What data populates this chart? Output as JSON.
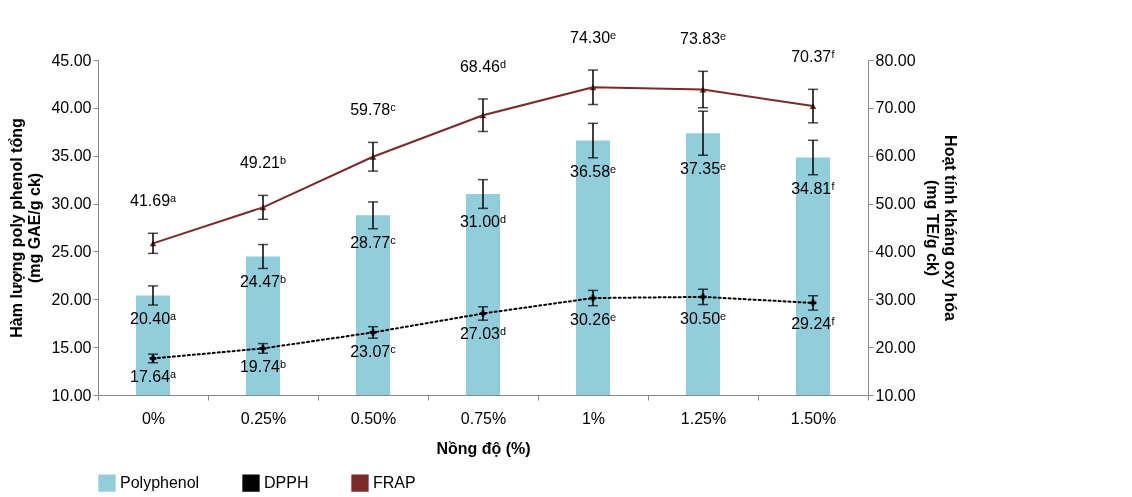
{
  "chart_data": {
    "type": "bar",
    "xlabel": "Nồng độ (%)",
    "ylabel": "Hàm lượng poly phenol tổng\n(mg GAE/g ck)",
    "y2label": "Hoạt tính kháng oxy hóa\n(mg TE/g ck)",
    "categories": [
      "0%",
      "0.25%",
      "0.50%",
      "0.75%",
      "1%",
      "1.25%",
      "1.50%"
    ],
    "series": [
      {
        "name": "Polyphenol",
        "color": "#92cddc",
        "values": [
          20.4,
          24.47,
          28.77,
          31.0,
          36.58,
          37.35,
          34.81
        ],
        "errors": [
          1.0,
          1.25,
          1.4,
          1.5,
          1.8,
          2.3,
          1.8
        ],
        "value_labels": [
          "20.40ᵃ",
          "24.47ᵇ",
          "28.77ᶜ",
          "31.00ᵈ",
          "36.58ᵉ",
          "37.35ᵉ",
          "34.81ᶠ"
        ]
      },
      {
        "name": "DPPH",
        "type": "line",
        "axis": "y2",
        "color": "#000000",
        "marker": "cross",
        "line_style": "dotted",
        "values": [
          17.64,
          19.74,
          23.07,
          27.03,
          30.26,
          30.5,
          29.24
        ],
        "errors": [
          0.9,
          1.0,
          1.2,
          1.4,
          1.6,
          1.6,
          1.5
        ],
        "value_labels": [
          "17.64ᵃ",
          "19.74ᵇ",
          "23.07ᶜ",
          "27.03ᵈ",
          "30.26ᵉ",
          "30.50ᵉ",
          "29.24ᶠ"
        ]
      },
      {
        "name": "FRAP",
        "type": "line",
        "axis": "y2",
        "color": "#7b2a2a",
        "marker": "triangle",
        "line_style": "solid",
        "values": [
          41.69,
          49.21,
          59.78,
          68.46,
          74.3,
          73.83,
          70.37
        ],
        "errors": [
          2.1,
          2.5,
          3.0,
          3.4,
          3.6,
          3.8,
          3.5
        ],
        "value_labels": [
          "41.69ᵃ",
          "49.21ᵇ",
          "59.78ᶜ",
          "68.46ᵈ",
          "74.30ᵉ",
          "73.83ᵉ",
          "70.37ᶠ"
        ]
      }
    ],
    "ylim": [
      10,
      45
    ],
    "yticks": [
      {
        "value": 10,
        "label": "10.00"
      },
      {
        "value": 15,
        "label": "15.00"
      },
      {
        "value": 20,
        "label": "20.00"
      },
      {
        "value": 25,
        "label": "25.00"
      },
      {
        "value": 30,
        "label": "30.00"
      },
      {
        "value": 35,
        "label": "35.00"
      },
      {
        "value": 40,
        "label": "40.00"
      },
      {
        "value": 45,
        "label": "45.00"
      }
    ],
    "y2lim": [
      10,
      80
    ],
    "y2ticks": [
      {
        "value": 10,
        "label": "10.00"
      },
      {
        "value": 20,
        "label": "20.00"
      },
      {
        "value": 30,
        "label": "30.00"
      },
      {
        "value": 40,
        "label": "40.00"
      },
      {
        "value": 50,
        "label": "50.00"
      },
      {
        "value": 60,
        "label": "60.00"
      },
      {
        "value": 70,
        "label": "70.00"
      },
      {
        "value": 80,
        "label": "80.00"
      }
    ],
    "legend": "bottom"
  }
}
